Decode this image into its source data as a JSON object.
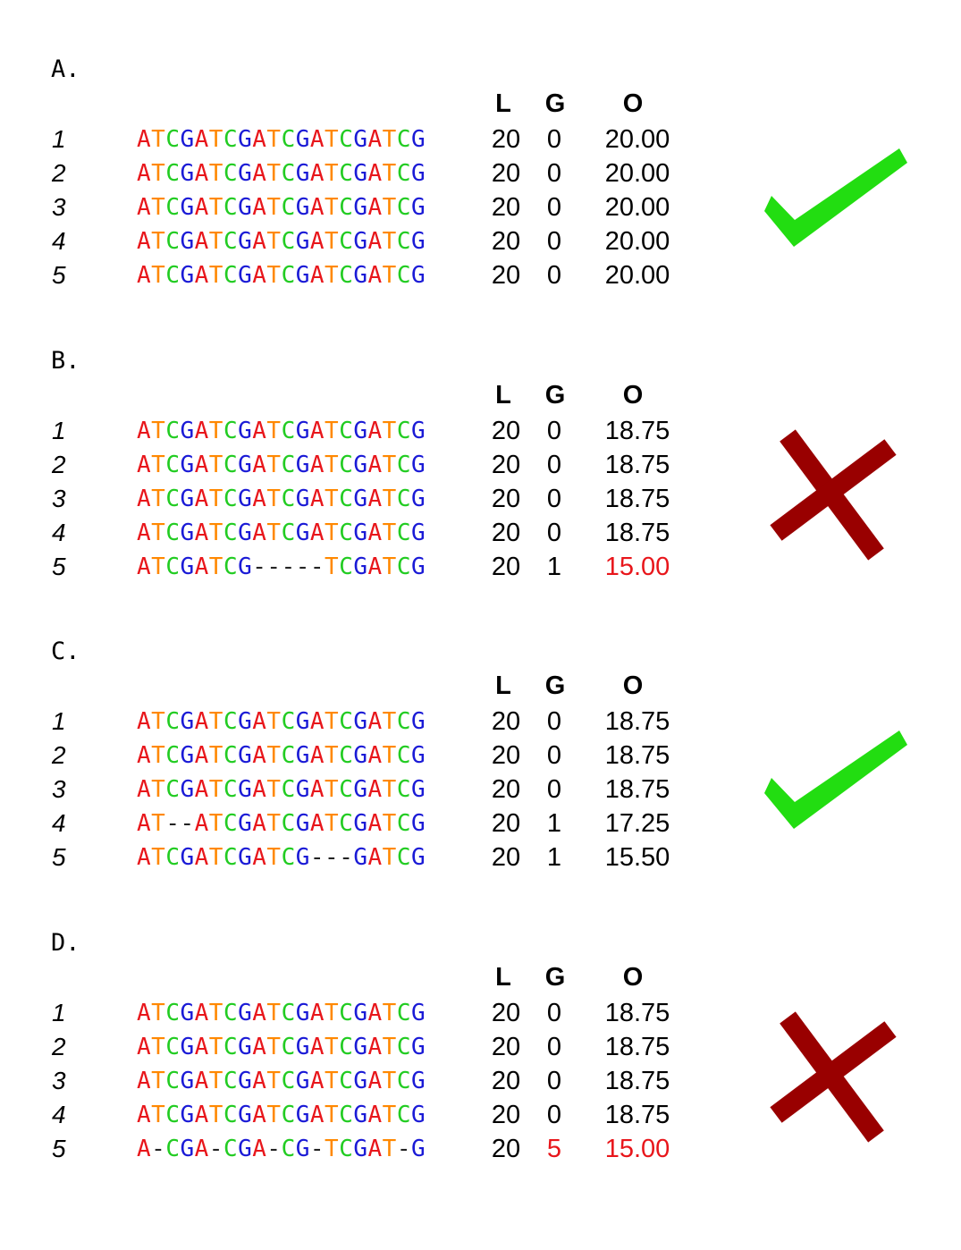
{
  "headers": {
    "L": "L",
    "G": "G",
    "O": "O"
  },
  "colors": {
    "A": "#e8161b",
    "T": "#ff8800",
    "C": "#22cc22",
    "G": "#1a1ad6",
    "gap": "#222222",
    "highlight": "#e8161b",
    "check": "#22dd11",
    "cross": "#990000"
  },
  "panels": [
    {
      "label": "A.",
      "verdict": "check-icon",
      "rows": [
        {
          "num": "1",
          "seq": "ATCGATCGATCGATCGATCG",
          "L": "20",
          "G": "0",
          "O": "20.00",
          "G_highlight": false,
          "O_highlight": false
        },
        {
          "num": "2",
          "seq": "ATCGATCGATCGATCGATCG",
          "L": "20",
          "G": "0",
          "O": "20.00",
          "G_highlight": false,
          "O_highlight": false
        },
        {
          "num": "3",
          "seq": "ATCGATCGATCGATCGATCG",
          "L": "20",
          "G": "0",
          "O": "20.00",
          "G_highlight": false,
          "O_highlight": false
        },
        {
          "num": "4",
          "seq": "ATCGATCGATCGATCGATCG",
          "L": "20",
          "G": "0",
          "O": "20.00",
          "G_highlight": false,
          "O_highlight": false
        },
        {
          "num": "5",
          "seq": "ATCGATCGATCGATCGATCG",
          "L": "20",
          "G": "0",
          "O": "20.00",
          "G_highlight": false,
          "O_highlight": false
        }
      ]
    },
    {
      "label": "B.",
      "verdict": "cross-icon",
      "rows": [
        {
          "num": "1",
          "seq": "ATCGATCGATCGATCGATCG",
          "L": "20",
          "G": "0",
          "O": "18.75",
          "G_highlight": false,
          "O_highlight": false
        },
        {
          "num": "2",
          "seq": "ATCGATCGATCGATCGATCG",
          "L": "20",
          "G": "0",
          "O": "18.75",
          "G_highlight": false,
          "O_highlight": false
        },
        {
          "num": "3",
          "seq": "ATCGATCGATCGATCGATCG",
          "L": "20",
          "G": "0",
          "O": "18.75",
          "G_highlight": false,
          "O_highlight": false
        },
        {
          "num": "4",
          "seq": "ATCGATCGATCGATCGATCG",
          "L": "20",
          "G": "0",
          "O": "18.75",
          "G_highlight": false,
          "O_highlight": false
        },
        {
          "num": "5",
          "seq": "ATCGATCG-----TCGATCG",
          "L": "20",
          "G": "1",
          "O": "15.00",
          "G_highlight": false,
          "O_highlight": true
        }
      ]
    },
    {
      "label": "C.",
      "verdict": "check-icon",
      "rows": [
        {
          "num": "1",
          "seq": "ATCGATCGATCGATCGATCG",
          "L": "20",
          "G": "0",
          "O": "18.75",
          "G_highlight": false,
          "O_highlight": false
        },
        {
          "num": "2",
          "seq": "ATCGATCGATCGATCGATCG",
          "L": "20",
          "G": "0",
          "O": "18.75",
          "G_highlight": false,
          "O_highlight": false
        },
        {
          "num": "3",
          "seq": "ATCGATCGATCGATCGATCG",
          "L": "20",
          "G": "0",
          "O": "18.75",
          "G_highlight": false,
          "O_highlight": false
        },
        {
          "num": "4",
          "seq": "AT--ATCGATCGATCGATCG",
          "L": "20",
          "G": "1",
          "O": "17.25",
          "G_highlight": false,
          "O_highlight": false
        },
        {
          "num": "5",
          "seq": "ATCGATCGATCG---GATCG",
          "L": "20",
          "G": "1",
          "O": "15.50",
          "G_highlight": false,
          "O_highlight": false
        }
      ]
    },
    {
      "label": "D.",
      "verdict": "cross-icon",
      "rows": [
        {
          "num": "1",
          "seq": "ATCGATCGATCGATCGATCG",
          "L": "20",
          "G": "0",
          "O": "18.75",
          "G_highlight": false,
          "O_highlight": false
        },
        {
          "num": "2",
          "seq": "ATCGATCGATCGATCGATCG",
          "L": "20",
          "G": "0",
          "O": "18.75",
          "G_highlight": false,
          "O_highlight": false
        },
        {
          "num": "3",
          "seq": "ATCGATCGATCGATCGATCG",
          "L": "20",
          "G": "0",
          "O": "18.75",
          "G_highlight": false,
          "O_highlight": false
        },
        {
          "num": "4",
          "seq": "ATCGATCGATCGATCGATCG",
          "L": "20",
          "G": "0",
          "O": "18.75",
          "G_highlight": false,
          "O_highlight": false
        },
        {
          "num": "5",
          "seq": "A-CGA-CGA-CG-TCGAT-G",
          "L": "20",
          "G": "5",
          "O": "15.00",
          "G_highlight": true,
          "O_highlight": true
        }
      ]
    }
  ]
}
